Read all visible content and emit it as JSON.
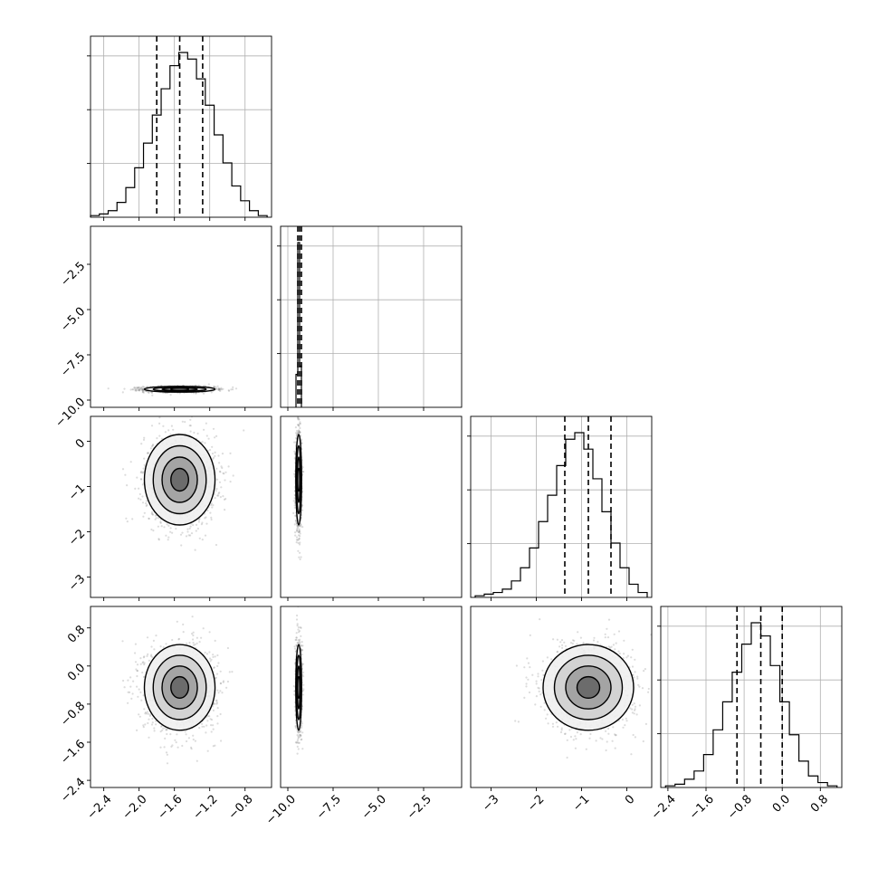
{
  "chart_data": {
    "type": "corner",
    "grid": true,
    "colors": {
      "line": "#000000",
      "grid": "#b0b0b0",
      "frame": "#000000",
      "points": "#808080"
    },
    "params": [
      {
        "range": [
          -2.55,
          -0.5
        ],
        "ticks": [
          -2.4,
          -2.0,
          -1.6,
          -1.2,
          -0.8
        ],
        "tick_labels": [
          "−2.4",
          "−2.0",
          "−1.6",
          "−1.2",
          "−0.8"
        ],
        "quantiles": [
          -1.8,
          -1.54,
          -1.28
        ],
        "mean": -1.54,
        "sd": 0.2
      },
      {
        "range": [
          -10.4,
          -0.4
        ],
        "ticks": [
          -10.0,
          -7.5,
          -5.0,
          -2.5
        ],
        "tick_labels": [
          "−10.0",
          "−7.5",
          "−5.0",
          "−2.5"
        ],
        "quantiles": [
          -9.45,
          -9.35,
          -9.25
        ],
        "mean": -9.4,
        "sd": 0.08
      },
      {
        "range": [
          -3.45,
          0.55
        ],
        "ticks": [
          -3,
          -2,
          -1,
          0
        ],
        "tick_labels": [
          "−3",
          "−2",
          "−1",
          "0"
        ],
        "quantiles": [
          -1.37,
          -0.85,
          -0.35
        ],
        "mean": -0.85,
        "sd": 0.5
      },
      {
        "range": [
          -2.55,
          1.25
        ],
        "ticks": [
          -2.4,
          -1.6,
          -0.8,
          0.0,
          0.8
        ],
        "tick_labels": [
          "−2.4",
          "−1.6",
          "−0.8",
          "0.0",
          "0.8"
        ],
        "quantiles": [
          -0.95,
          -0.45,
          0.0
        ],
        "mean": -0.45,
        "sd": 0.45
      }
    ],
    "histograms": [
      {
        "param": 0,
        "bin_edges": [
          -2.55,
          -2.45,
          -2.35,
          -2.25,
          -2.15,
          -2.05,
          -1.95,
          -1.85,
          -1.75,
          -1.65,
          -1.55,
          -1.45,
          -1.35,
          -1.25,
          -1.15,
          -1.05,
          -0.95,
          -0.85,
          -0.75,
          -0.65,
          -0.55
        ],
        "counts": [
          0.01,
          0.02,
          0.04,
          0.09,
          0.18,
          0.3,
          0.45,
          0.62,
          0.78,
          0.92,
          1.0,
          0.96,
          0.84,
          0.68,
          0.5,
          0.33,
          0.19,
          0.1,
          0.04,
          0.01
        ]
      },
      {
        "param": 1,
        "bin_edges": [
          -9.55,
          -9.45,
          -9.35,
          -9.25
        ],
        "counts": [
          0.2,
          1.0,
          0.25
        ]
      },
      {
        "param": 2,
        "bin_edges": [
          -3.35,
          -3.15,
          -2.95,
          -2.75,
          -2.55,
          -2.35,
          -2.15,
          -1.95,
          -1.75,
          -1.55,
          -1.35,
          -1.15,
          -0.95,
          -0.75,
          -0.55,
          -0.35,
          -0.15,
          0.05,
          0.25,
          0.45
        ],
        "counts": [
          0.01,
          0.02,
          0.03,
          0.05,
          0.1,
          0.18,
          0.3,
          0.46,
          0.62,
          0.8,
          0.96,
          1.0,
          0.9,
          0.72,
          0.52,
          0.33,
          0.18,
          0.08,
          0.03
        ]
      },
      {
        "param": 3,
        "bin_edges": [
          -2.45,
          -2.25,
          -2.05,
          -1.85,
          -1.65,
          -1.45,
          -1.25,
          -1.05,
          -0.85,
          -0.65,
          -0.45,
          -0.25,
          -0.05,
          0.15,
          0.35,
          0.55,
          0.75,
          0.95,
          1.15
        ],
        "counts": [
          0.01,
          0.02,
          0.05,
          0.1,
          0.2,
          0.35,
          0.52,
          0.7,
          0.87,
          1.0,
          0.92,
          0.74,
          0.52,
          0.32,
          0.16,
          0.07,
          0.03,
          0.01
        ]
      }
    ],
    "scatter_panels": [
      {
        "x": 0,
        "y": 1
      },
      {
        "x": 0,
        "y": 2
      },
      {
        "x": 1,
        "y": 2
      },
      {
        "x": 0,
        "y": 3
      },
      {
        "x": 1,
        "y": 3
      },
      {
        "x": 2,
        "y": 3
      }
    ],
    "contour_levels_sigma": [
      0.5,
      1.0,
      1.5,
      2.0
    ]
  }
}
